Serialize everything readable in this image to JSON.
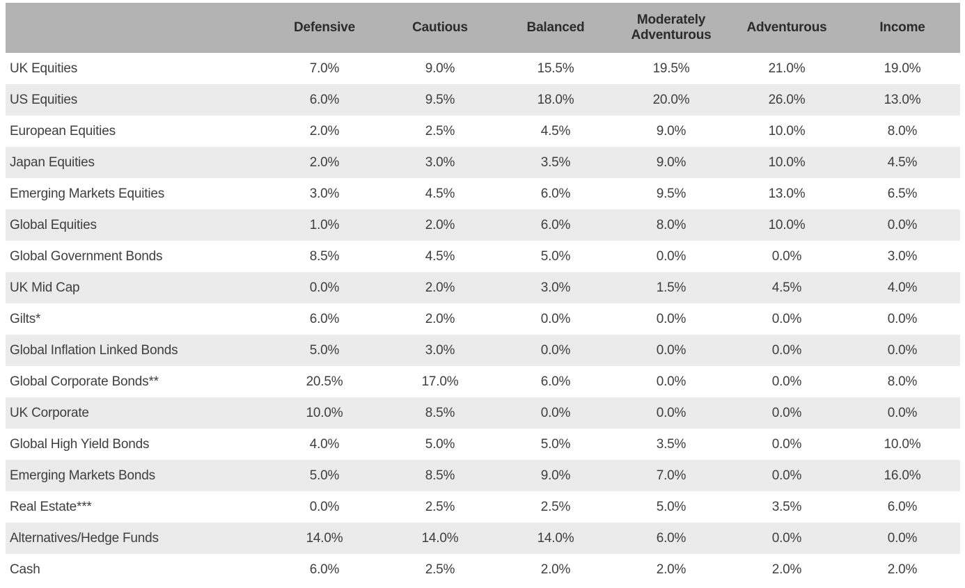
{
  "table": {
    "corner_label": "",
    "columns": [
      "Defensive",
      "Cautious",
      "Balanced",
      "Moderately Adventurous",
      "Adventurous",
      "Income"
    ],
    "rows": [
      {
        "label": "UK Equities",
        "values": [
          "7.0%",
          "9.0%",
          "15.5%",
          "19.5%",
          "21.0%",
          "19.0%"
        ]
      },
      {
        "label": "US Equities",
        "values": [
          "6.0%",
          "9.5%",
          "18.0%",
          "20.0%",
          "26.0%",
          "13.0%"
        ]
      },
      {
        "label": "European Equities",
        "values": [
          "2.0%",
          "2.5%",
          "4.5%",
          "9.0%",
          "10.0%",
          "8.0%"
        ]
      },
      {
        "label": "Japan Equities",
        "values": [
          "2.0%",
          "3.0%",
          "3.5%",
          "9.0%",
          "10.0%",
          "4.5%"
        ]
      },
      {
        "label": "Emerging Markets Equities",
        "values": [
          "3.0%",
          "4.5%",
          "6.0%",
          "9.5%",
          "13.0%",
          "6.5%"
        ]
      },
      {
        "label": "Global Equities",
        "values": [
          "1.0%",
          "2.0%",
          "6.0%",
          "8.0%",
          "10.0%",
          "0.0%"
        ]
      },
      {
        "label": "Global Government Bonds",
        "values": [
          "8.5%",
          "4.5%",
          "5.0%",
          "0.0%",
          "0.0%",
          "3.0%"
        ]
      },
      {
        "label": "UK Mid Cap",
        "values": [
          "0.0%",
          "2.0%",
          "3.0%",
          "1.5%",
          "4.5%",
          "4.0%"
        ]
      },
      {
        "label": "Gilts*",
        "values": [
          "6.0%",
          "2.0%",
          "0.0%",
          "0.0%",
          "0.0%",
          "0.0%"
        ]
      },
      {
        "label": "Global Inflation Linked Bonds",
        "values": [
          "5.0%",
          "3.0%",
          "0.0%",
          "0.0%",
          "0.0%",
          "0.0%"
        ]
      },
      {
        "label": "Global Corporate Bonds**",
        "values": [
          "20.5%",
          "17.0%",
          "6.0%",
          "0.0%",
          "0.0%",
          "8.0%"
        ]
      },
      {
        "label": "UK Corporate",
        "values": [
          "10.0%",
          "8.5%",
          "0.0%",
          "0.0%",
          "0.0%",
          "0.0%"
        ]
      },
      {
        "label": "Global High Yield Bonds",
        "values": [
          "4.0%",
          "5.0%",
          "5.0%",
          "3.5%",
          "0.0%",
          "10.0%"
        ]
      },
      {
        "label": "Emerging Markets Bonds",
        "values": [
          "5.0%",
          "8.5%",
          "9.0%",
          "7.0%",
          "0.0%",
          "16.0%"
        ]
      },
      {
        "label": "Real Estate***",
        "values": [
          "0.0%",
          "2.5%",
          "2.5%",
          "5.0%",
          "3.5%",
          "6.0%"
        ]
      },
      {
        "label": "Alternatives/Hedge Funds",
        "values": [
          "14.0%",
          "14.0%",
          "14.0%",
          "6.0%",
          "0.0%",
          "0.0%"
        ]
      },
      {
        "label": "Cash",
        "values": [
          "6.0%",
          "2.5%",
          "2.0%",
          "2.0%",
          "2.0%",
          "2.0%"
        ]
      }
    ]
  },
  "colors": {
    "header_bg": "#b3b3b3",
    "stripe_bg": "#ebebeb",
    "header_text": "#2b2b2b",
    "body_text": "#3e3e3e"
  }
}
